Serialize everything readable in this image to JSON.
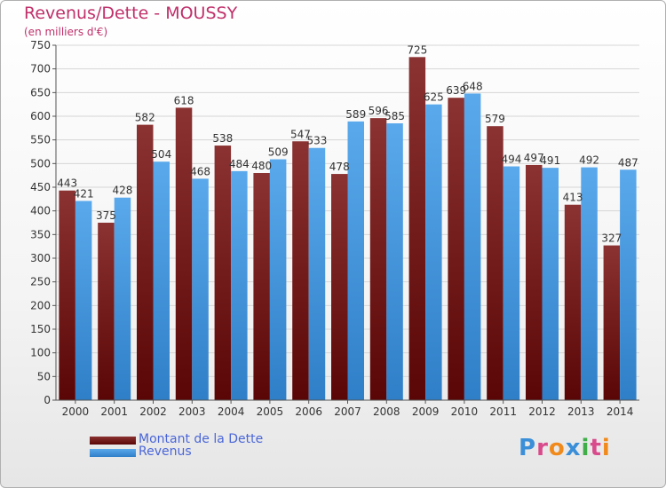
{
  "header": {
    "title": "Revenus/Dette - MOUSSY",
    "subtitle": "(en milliers d'€)"
  },
  "colors": {
    "dette_top": "#8b3232",
    "dette_bottom": "#5a0606",
    "revenus_top": "#5aa9ec",
    "revenus_bottom": "#2f7fc8",
    "grid": "#d6d6d6",
    "axis": "#555555",
    "label": "#333333"
  },
  "chart_data": {
    "type": "bar",
    "categories": [
      "2000",
      "2001",
      "2002",
      "2003",
      "2004",
      "2005",
      "2006",
      "2007",
      "2008",
      "2009",
      "2010",
      "2011",
      "2012",
      "2013",
      "2014"
    ],
    "series": [
      {
        "name": "Montant de la Dette",
        "values": [
          443,
          375,
          582,
          618,
          538,
          480,
          547,
          478,
          596,
          725,
          639,
          579,
          497,
          413,
          327
        ]
      },
      {
        "name": "Revenus",
        "values": [
          421,
          428,
          504,
          468,
          484,
          509,
          533,
          589,
          585,
          625,
          648,
          494,
          491,
          492,
          487
        ]
      }
    ],
    "ylim": [
      0,
      750
    ],
    "yticks": [
      0,
      50,
      100,
      150,
      200,
      250,
      300,
      350,
      400,
      450,
      500,
      550,
      600,
      650,
      700,
      750
    ],
    "grid": true,
    "legend_position": "bottom-left"
  },
  "legend": {
    "items": [
      {
        "label": "Montant de la Dette"
      },
      {
        "label": "Revenus"
      }
    ]
  },
  "logo": {
    "text": "Proxiti",
    "letter_colors": [
      "#3a8fd8",
      "#d94a8c",
      "#f08a1c",
      "#3a8fd8",
      "#3fae49",
      "#d94a8c",
      "#f08a1c"
    ]
  }
}
